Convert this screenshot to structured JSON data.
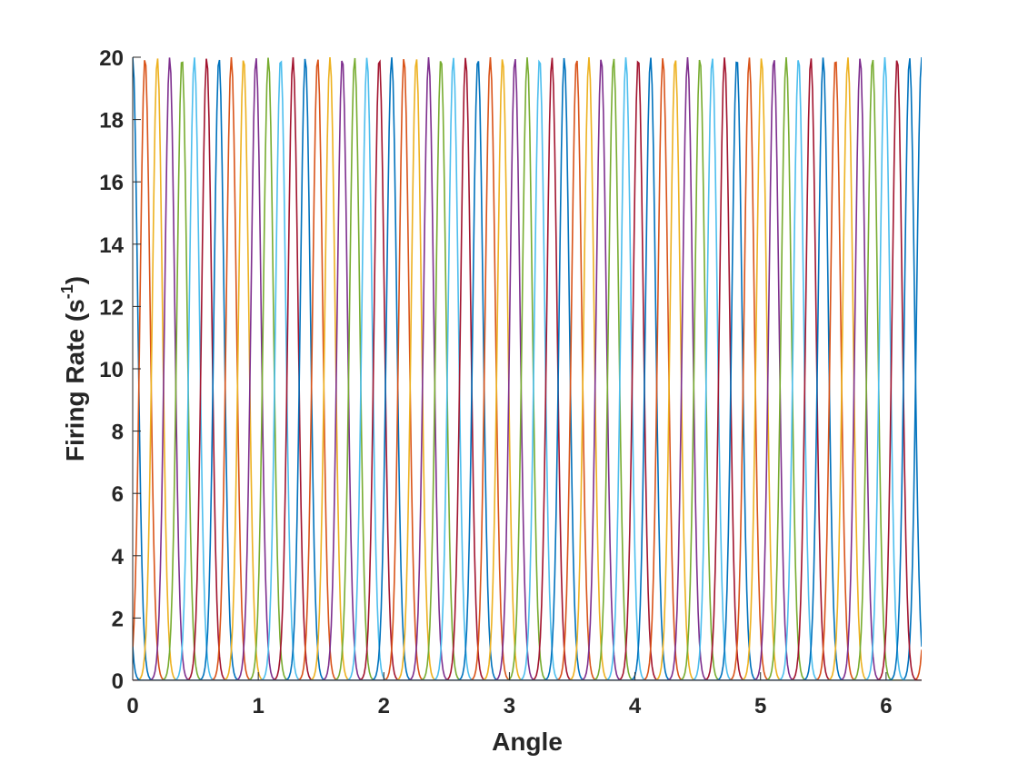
{
  "chart_data": {
    "type": "line",
    "title": "",
    "xlabel": "Angle",
    "ylabel": "Firing Rate (s",
    "ylabel_superscript": "-1",
    "ylabel_suffix": ")",
    "xlim": [
      0,
      6.2832
    ],
    "ylim": [
      0,
      20
    ],
    "xticks": [
      "0",
      "1",
      "2",
      "3",
      "4",
      "5",
      "6"
    ],
    "yticks": [
      "0",
      "2",
      "4",
      "6",
      "8",
      "10",
      "12",
      "14",
      "16",
      "18",
      "20"
    ],
    "grid": false,
    "legend": "none",
    "num_tuning_curves": 64,
    "peak_rate": 20,
    "first_peak_angle": 0,
    "peak_spacing": 0.0982,
    "tuning_width": 0.04,
    "color_cycle": [
      "#0072BD",
      "#D95319",
      "#EDB120",
      "#7E2F8E",
      "#77AC30",
      "#4DBEEE",
      "#A2142F"
    ]
  }
}
